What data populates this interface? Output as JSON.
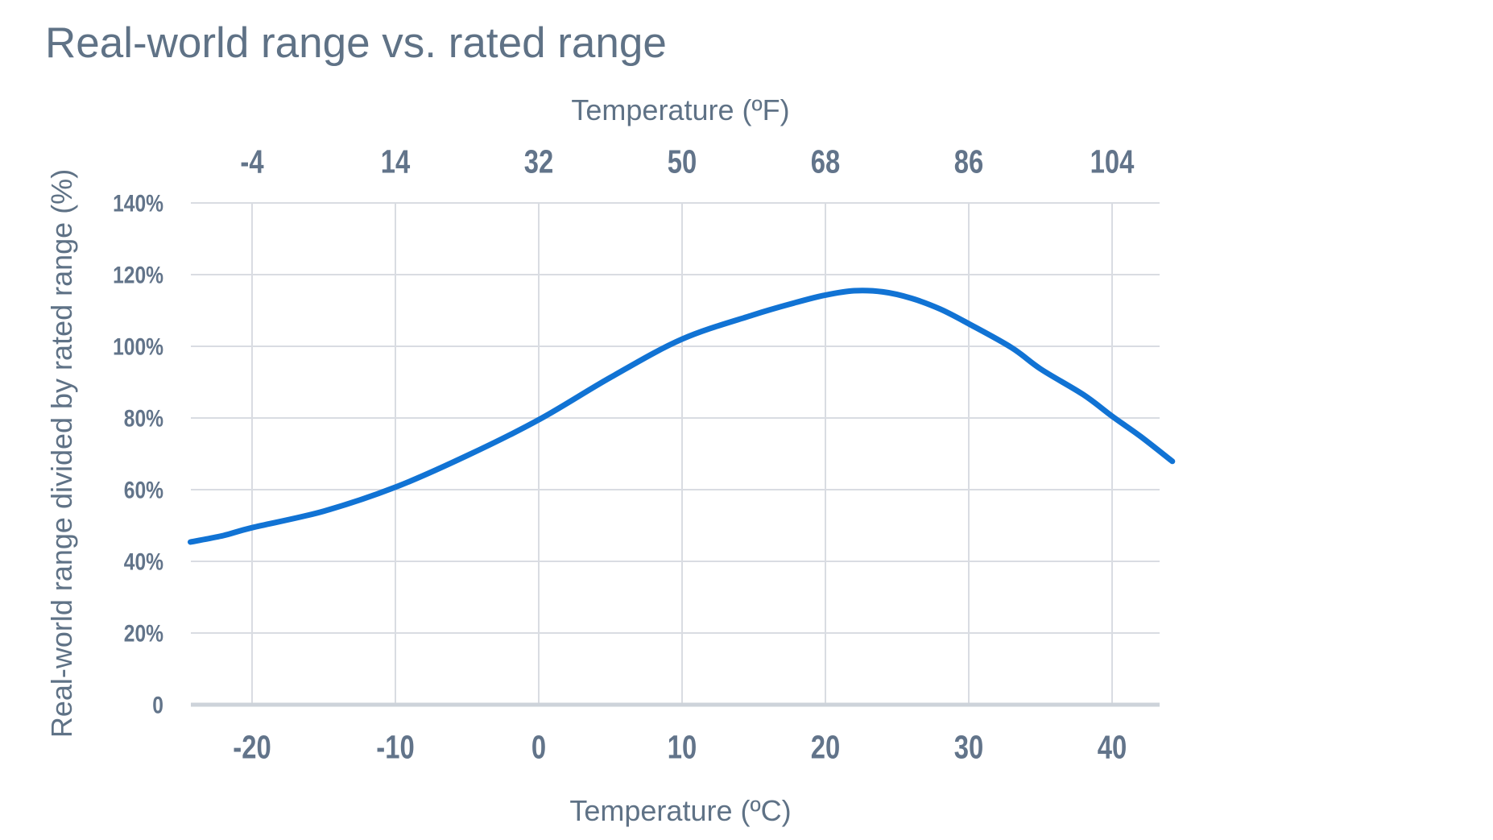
{
  "title": "Real-world range vs. rated range",
  "chart_data": {
    "type": "line",
    "title": "Real-world range vs. rated range",
    "x_axis_top": {
      "label": "Temperature (ºF)",
      "ticks": [
        -4,
        14,
        32,
        50,
        68,
        86,
        104
      ]
    },
    "x_axis_bottom": {
      "label": "Temperature (ºC)",
      "ticks": [
        -20,
        -10,
        0,
        10,
        20,
        30,
        40
      ]
    },
    "y_axis": {
      "label": "Real-world range divided by rated range (%)",
      "tick_labels": [
        "0",
        "20%",
        "40%",
        "60%",
        "80%",
        "100%",
        "120%",
        "140%"
      ],
      "tick_values": [
        0,
        20,
        40,
        60,
        80,
        100,
        120,
        140
      ]
    },
    "xlim_celsius": [
      -24.3,
      44.2
    ],
    "ylim_percent": [
      0,
      147
    ],
    "grid": true,
    "legend": "none",
    "series": [
      {
        "name": "Real-world range divided by rated range (%)",
        "color": "#1173d4",
        "points_celsius_percent": [
          [
            -24.3,
            45.4
          ],
          [
            -22,
            47.2
          ],
          [
            -20,
            49.4
          ],
          [
            -15,
            54.0
          ],
          [
            -10,
            60.7
          ],
          [
            -5,
            69.5
          ],
          [
            0,
            79.5
          ],
          [
            5,
            91.3
          ],
          [
            10,
            102.0
          ],
          [
            15,
            108.8
          ],
          [
            18,
            112.3
          ],
          [
            20,
            114.3
          ],
          [
            22,
            115.5
          ],
          [
            24,
            115.2
          ],
          [
            26,
            113.4
          ],
          [
            28,
            110.4
          ],
          [
            30,
            106.3
          ],
          [
            33,
            99.6
          ],
          [
            35,
            93.7
          ],
          [
            38,
            86.5
          ],
          [
            40,
            80.5
          ],
          [
            42,
            74.8
          ],
          [
            44.2,
            67.9
          ]
        ]
      }
    ]
  },
  "colors": {
    "background": "#ffffff",
    "title_text": "#5f7286",
    "tick_text": "#62748a",
    "gridline": "#d9dce2",
    "axis_line": "#cdd3da",
    "curve": "#1173d4"
  }
}
